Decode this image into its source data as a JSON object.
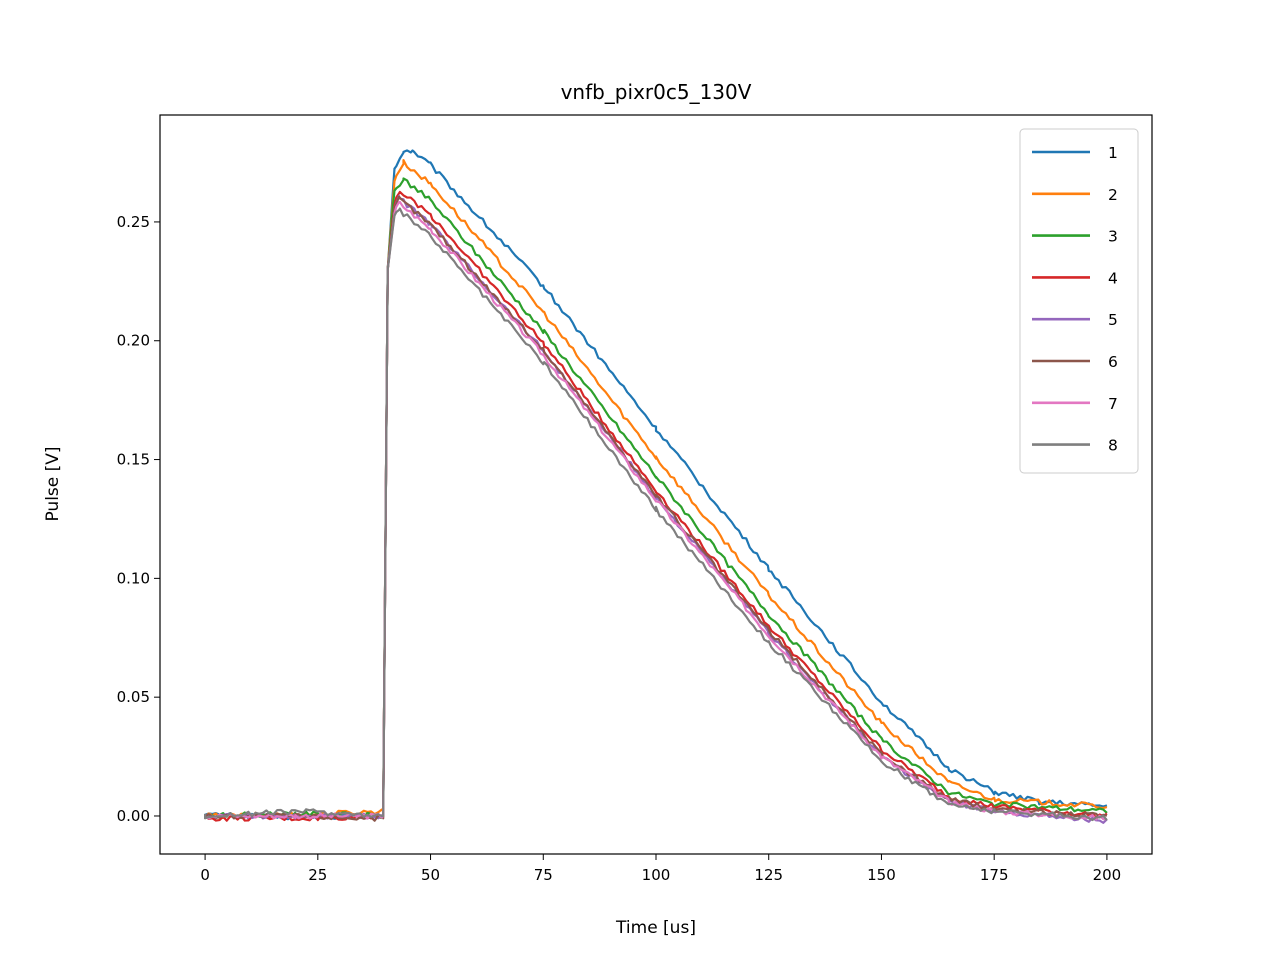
{
  "chart_data": {
    "type": "line",
    "title": "vnfb_pixr0c5_130V",
    "xlabel": "Time [us]",
    "ylabel": "Pulse [V]",
    "xlim": [
      -10,
      210
    ],
    "ylim": [
      -0.016,
      0.295
    ],
    "xticks": [
      0,
      25,
      50,
      75,
      100,
      125,
      150,
      175,
      200
    ],
    "yticks": [
      0.0,
      0.05,
      0.1,
      0.15,
      0.2,
      0.25
    ],
    "ytick_labels": [
      "0.00",
      "0.05",
      "0.10",
      "0.15",
      "0.20",
      "0.25"
    ],
    "legend_position": "top-right",
    "rise_time_us": 40,
    "series": [
      {
        "name": "1",
        "color": "#1f77b4",
        "points": [
          [
            0,
            0.0005
          ],
          [
            20,
            -0.0005
          ],
          [
            39.5,
            0.0
          ],
          [
            40.5,
            0.23
          ],
          [
            42,
            0.272
          ],
          [
            44,
            0.28
          ],
          [
            46,
            0.28
          ],
          [
            50,
            0.274
          ],
          [
            75,
            0.223
          ],
          [
            100,
            0.163
          ],
          [
            125,
            0.104
          ],
          [
            150,
            0.048
          ],
          [
            165,
            0.02
          ],
          [
            175,
            0.01
          ],
          [
            185,
            0.006
          ],
          [
            200,
            0.004
          ]
        ]
      },
      {
        "name": "2",
        "color": "#ff7f0e",
        "points": [
          [
            0,
            0.0
          ],
          [
            20,
            0.0005
          ],
          [
            39.5,
            0.002
          ],
          [
            40.5,
            0.23
          ],
          [
            42,
            0.268
          ],
          [
            44,
            0.275
          ],
          [
            50,
            0.266
          ],
          [
            75,
            0.212
          ],
          [
            100,
            0.151
          ],
          [
            125,
            0.093
          ],
          [
            150,
            0.039
          ],
          [
            165,
            0.014
          ],
          [
            175,
            0.007
          ],
          [
            200,
            0.004
          ]
        ]
      },
      {
        "name": "3",
        "color": "#2ca02c",
        "points": [
          [
            0,
            0.0
          ],
          [
            20,
            0.001
          ],
          [
            39.5,
            0.0
          ],
          [
            40.5,
            0.23
          ],
          [
            42,
            0.263
          ],
          [
            44,
            0.268
          ],
          [
            50,
            0.259
          ],
          [
            75,
            0.204
          ],
          [
            100,
            0.143
          ],
          [
            125,
            0.085
          ],
          [
            150,
            0.032
          ],
          [
            165,
            0.01
          ],
          [
            175,
            0.005
          ],
          [
            200,
            0.002
          ]
        ]
      },
      {
        "name": "4",
        "color": "#d62728",
        "points": [
          [
            0,
            -0.001
          ],
          [
            25,
            -0.001
          ],
          [
            39.5,
            0.0
          ],
          [
            40.5,
            0.23
          ],
          [
            42,
            0.258
          ],
          [
            43,
            0.263
          ],
          [
            50,
            0.253
          ],
          [
            75,
            0.199
          ],
          [
            100,
            0.137
          ],
          [
            125,
            0.08
          ],
          [
            150,
            0.028
          ],
          [
            165,
            0.008
          ],
          [
            175,
            0.004
          ],
          [
            200,
            0.0
          ]
        ]
      },
      {
        "name": "5",
        "color": "#9467bd",
        "points": [
          [
            0,
            0.0
          ],
          [
            20,
            0.0
          ],
          [
            39.5,
            0.0
          ],
          [
            40.5,
            0.23
          ],
          [
            42,
            0.256
          ],
          [
            43,
            0.26
          ],
          [
            50,
            0.249
          ],
          [
            75,
            0.196
          ],
          [
            100,
            0.134
          ],
          [
            125,
            0.077
          ],
          [
            150,
            0.025
          ],
          [
            165,
            0.006
          ],
          [
            175,
            0.002
          ],
          [
            200,
            -0.002
          ]
        ]
      },
      {
        "name": "6",
        "color": "#8c564b",
        "points": [
          [
            0,
            0.0
          ],
          [
            20,
            0.0
          ],
          [
            39.5,
            -0.001
          ],
          [
            40.5,
            0.23
          ],
          [
            42,
            0.255
          ],
          [
            43,
            0.26
          ],
          [
            50,
            0.249
          ],
          [
            75,
            0.196
          ],
          [
            100,
            0.135
          ],
          [
            125,
            0.078
          ],
          [
            150,
            0.026
          ],
          [
            165,
            0.007
          ],
          [
            175,
            0.003
          ],
          [
            200,
            0.0
          ]
        ]
      },
      {
        "name": "7",
        "color": "#e377c2",
        "points": [
          [
            0,
            0.0
          ],
          [
            20,
            0.0
          ],
          [
            39.5,
            0.0
          ],
          [
            40.5,
            0.23
          ],
          [
            42,
            0.254
          ],
          [
            43,
            0.258
          ],
          [
            50,
            0.247
          ],
          [
            75,
            0.194
          ],
          [
            100,
            0.133
          ],
          [
            125,
            0.076
          ],
          [
            150,
            0.025
          ],
          [
            165,
            0.006
          ],
          [
            175,
            0.002
          ],
          [
            200,
            -0.001
          ]
        ]
      },
      {
        "name": "8",
        "color": "#7f7f7f",
        "points": [
          [
            0,
            0.0
          ],
          [
            22,
            0.002
          ],
          [
            39.5,
            0.0
          ],
          [
            40.5,
            0.23
          ],
          [
            42,
            0.252
          ],
          [
            43,
            0.255
          ],
          [
            50,
            0.244
          ],
          [
            75,
            0.191
          ],
          [
            100,
            0.129
          ],
          [
            125,
            0.073
          ],
          [
            150,
            0.023
          ],
          [
            165,
            0.005
          ],
          [
            175,
            0.002
          ],
          [
            200,
            -0.001
          ]
        ]
      }
    ]
  }
}
